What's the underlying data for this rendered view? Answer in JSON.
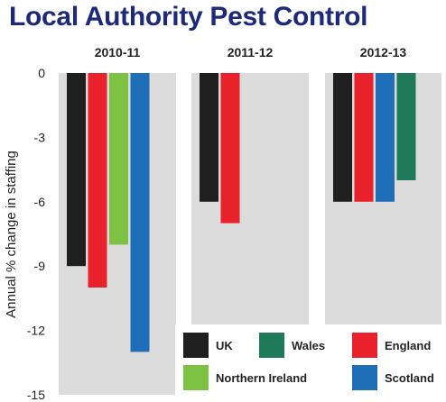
{
  "title": "Local Authority Pest Control",
  "chart_data": {
    "type": "bar",
    "ylabel": "Annual % change in staffing",
    "ylim": [
      -15,
      0
    ],
    "yticks": [
      0,
      -3,
      -6,
      -9,
      -12,
      -15
    ],
    "categories": [
      "2010-11",
      "2011-12",
      "2012-13"
    ],
    "series": [
      {
        "name": "UK",
        "color": "#1f1f1f",
        "values": [
          -9,
          -6,
          -6
        ]
      },
      {
        "name": "Wales",
        "color": "#1f7a5a",
        "values": [
          null,
          null,
          -5
        ]
      },
      {
        "name": "England",
        "color": "#e8212b",
        "values": [
          -10,
          -7,
          -6
        ]
      },
      {
        "name": "Northern Ireland",
        "color": "#7dc242",
        "values": [
          -8,
          null,
          null
        ]
      },
      {
        "name": "Scotland",
        "color": "#1f6fb8",
        "values": [
          -13,
          null,
          -6
        ]
      }
    ],
    "group_series_order": [
      [
        "UK",
        "England",
        "Northern Ireland",
        "Scotland"
      ],
      [
        "UK",
        "England"
      ],
      [
        "UK",
        "England",
        "Scotland",
        "Wales"
      ]
    ],
    "legend": [
      {
        "name": "UK",
        "color": "#1f1f1f"
      },
      {
        "name": "Wales",
        "color": "#1f7a5a"
      },
      {
        "name": "England",
        "color": "#e8212b"
      },
      {
        "name": "Northern Ireland",
        "color": "#7dc242"
      },
      {
        "name": "Scotland",
        "color": "#1f6fb8"
      }
    ],
    "legend_position": "bottom-right",
    "panel_color": "#dcdcdc",
    "grid": false
  }
}
